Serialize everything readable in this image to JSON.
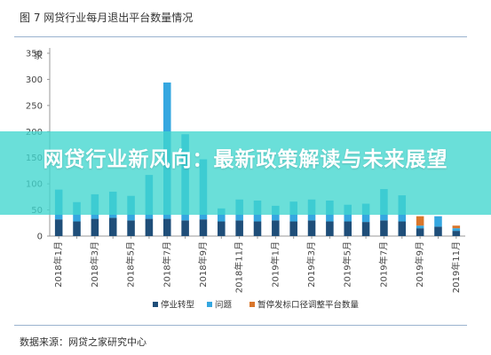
{
  "figure": {
    "title": "图 7 网贷行业每月退出平台数量情况",
    "source": "数据来源：网贷之家研究中心"
  },
  "banner": {
    "text": "网贷行业新风向：最新政策解读与未来展望",
    "color": "#40d6ce"
  },
  "chart_data": {
    "type": "bar",
    "stacked": true,
    "unit_label": "家",
    "ylim": [
      0,
      350
    ],
    "yticks": [
      0,
      50,
      100,
      150,
      200,
      250,
      300,
      350
    ],
    "categories": [
      "2018年1月",
      "2018年2月",
      "2018年3月",
      "2018年4月",
      "2018年5月",
      "2018年6月",
      "2018年7月",
      "2018年8月",
      "2018年9月",
      "2018年10月",
      "2018年11月",
      "2018年12月",
      "2019年1月",
      "2019年2月",
      "2019年3月",
      "2019年4月",
      "2019年5月",
      "2019年6月",
      "2019年7月",
      "2019年8月",
      "2019年9月",
      "2019年10月",
      "2019年11月"
    ],
    "xtick_labels": [
      "2018年1月",
      "2018年3月",
      "2018年5月",
      "2018年7月",
      "2018年9月",
      "2018年11月",
      "2019年1月",
      "2019年3月",
      "2019年5月",
      "2019年7月",
      "2019年9月",
      "2019年11月"
    ],
    "series": [
      {
        "name": "停业转型",
        "color": "#1f4e79",
        "values": [
          32,
          28,
          33,
          35,
          30,
          33,
          33,
          30,
          32,
          28,
          30,
          28,
          30,
          28,
          30,
          28,
          28,
          27,
          30,
          28,
          15,
          18,
          10
        ]
      },
      {
        "name": "问题",
        "color": "#35a7e0",
        "values": [
          57,
          37,
          47,
          50,
          47,
          84,
          261,
          165,
          115,
          25,
          40,
          40,
          28,
          38,
          40,
          40,
          32,
          35,
          60,
          50,
          5,
          20,
          5
        ]
      },
      {
        "name": "暂停发标口径调整平台数量",
        "color": "#d9762b",
        "values": [
          0,
          0,
          0,
          0,
          0,
          0,
          0,
          0,
          0,
          0,
          0,
          0,
          0,
          0,
          0,
          0,
          0,
          0,
          0,
          0,
          18,
          0,
          5
        ]
      }
    ],
    "legend_position": "bottom",
    "grid": false
  }
}
